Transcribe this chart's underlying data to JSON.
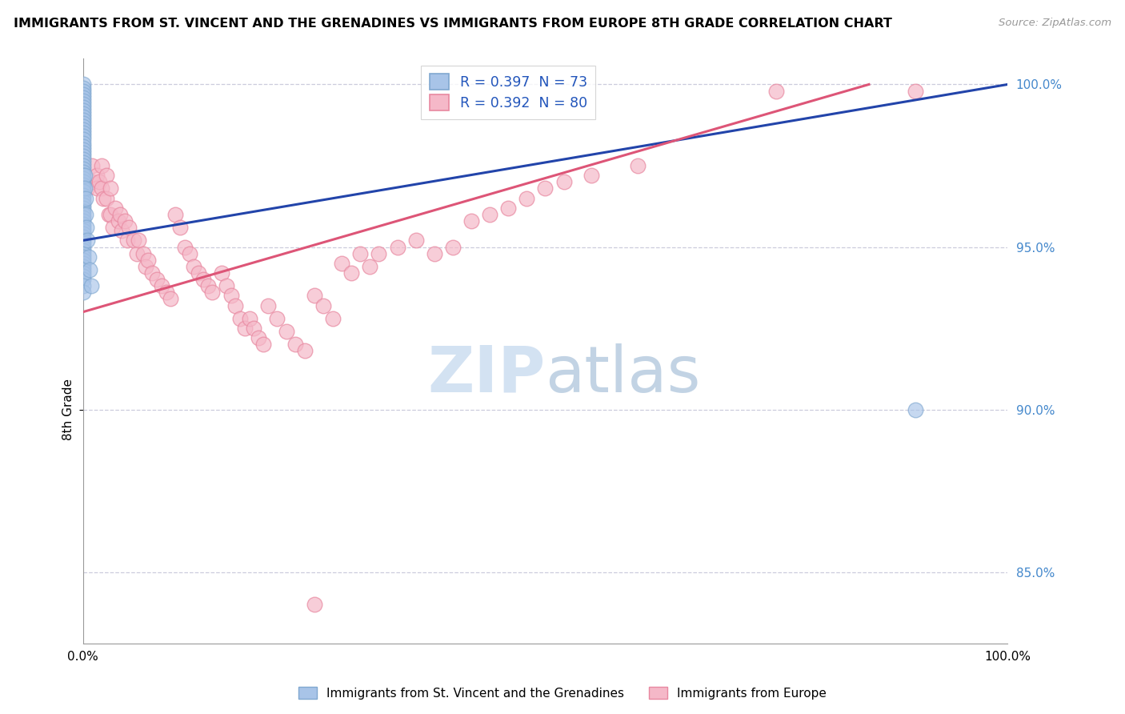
{
  "title": "IMMIGRANTS FROM ST. VINCENT AND THE GRENADINES VS IMMIGRANTS FROM EUROPE 8TH GRADE CORRELATION CHART",
  "source": "Source: ZipAtlas.com",
  "ylabel": "8th Grade",
  "legend_entries": [
    {
      "label": "R = 0.397  N = 73",
      "color": "#a8c4e0"
    },
    {
      "label": "R = 0.392  N = 80",
      "color": "#f0a0b0"
    }
  ],
  "bottom_legend": [
    {
      "label": "Immigrants from St. Vincent and the Grenadines",
      "color": "#a8c4e0"
    },
    {
      "label": "Immigrants from Europe",
      "color": "#f0a0b0"
    }
  ],
  "blue_scatter_x": [
    0.0,
    0.0,
    0.0,
    0.0,
    0.0,
    0.0,
    0.0,
    0.0,
    0.0,
    0.0,
    0.0,
    0.0,
    0.0,
    0.0,
    0.0,
    0.0,
    0.0,
    0.0,
    0.0,
    0.0,
    0.0,
    0.0,
    0.0,
    0.0,
    0.0,
    0.0,
    0.0,
    0.0,
    0.0,
    0.0,
    0.0,
    0.0,
    0.0,
    0.0,
    0.0,
    0.0,
    0.0,
    0.0,
    0.0,
    0.0,
    0.0,
    0.0,
    0.0,
    0.0,
    0.0,
    0.0,
    0.0,
    0.0,
    0.0,
    0.0,
    0.0,
    0.0,
    0.0,
    0.0,
    0.0,
    0.0,
    0.0,
    0.0,
    0.0,
    0.0,
    0.0,
    0.0,
    0.0,
    0.002,
    0.002,
    0.003,
    0.003,
    0.004,
    0.005,
    0.006,
    0.007,
    0.009,
    0.9
  ],
  "blue_scatter_y": [
    1.0,
    0.999,
    0.998,
    0.997,
    0.996,
    0.995,
    0.994,
    0.993,
    0.992,
    0.991,
    0.99,
    0.989,
    0.988,
    0.987,
    0.986,
    0.985,
    0.984,
    0.983,
    0.982,
    0.981,
    0.98,
    0.979,
    0.978,
    0.977,
    0.976,
    0.975,
    0.974,
    0.973,
    0.972,
    0.971,
    0.97,
    0.969,
    0.968,
    0.967,
    0.966,
    0.965,
    0.964,
    0.963,
    0.962,
    0.961,
    0.96,
    0.959,
    0.958,
    0.957,
    0.956,
    0.955,
    0.954,
    0.953,
    0.952,
    0.951,
    0.95,
    0.949,
    0.948,
    0.947,
    0.946,
    0.945,
    0.944,
    0.943,
    0.942,
    0.941,
    0.94,
    0.938,
    0.936,
    0.972,
    0.968,
    0.965,
    0.96,
    0.956,
    0.952,
    0.947,
    0.943,
    0.938,
    0.9
  ],
  "pink_scatter_x": [
    0.005,
    0.01,
    0.01,
    0.015,
    0.015,
    0.018,
    0.02,
    0.02,
    0.022,
    0.025,
    0.025,
    0.028,
    0.03,
    0.03,
    0.032,
    0.035,
    0.038,
    0.04,
    0.042,
    0.045,
    0.048,
    0.05,
    0.055,
    0.058,
    0.06,
    0.065,
    0.068,
    0.07,
    0.075,
    0.08,
    0.085,
    0.09,
    0.095,
    0.1,
    0.105,
    0.11,
    0.115,
    0.12,
    0.125,
    0.13,
    0.135,
    0.14,
    0.15,
    0.155,
    0.16,
    0.165,
    0.17,
    0.175,
    0.18,
    0.185,
    0.19,
    0.195,
    0.2,
    0.21,
    0.22,
    0.23,
    0.24,
    0.25,
    0.26,
    0.27,
    0.28,
    0.29,
    0.3,
    0.31,
    0.32,
    0.34,
    0.36,
    0.38,
    0.4,
    0.42,
    0.44,
    0.46,
    0.48,
    0.5,
    0.52,
    0.55,
    0.6,
    0.75,
    0.9,
    0.25
  ],
  "pink_scatter_y": [
    0.968,
    0.975,
    0.97,
    0.972,
    0.968,
    0.97,
    0.975,
    0.968,
    0.965,
    0.972,
    0.965,
    0.96,
    0.968,
    0.96,
    0.956,
    0.962,
    0.958,
    0.96,
    0.955,
    0.958,
    0.952,
    0.956,
    0.952,
    0.948,
    0.952,
    0.948,
    0.944,
    0.946,
    0.942,
    0.94,
    0.938,
    0.936,
    0.934,
    0.96,
    0.956,
    0.95,
    0.948,
    0.944,
    0.942,
    0.94,
    0.938,
    0.936,
    0.942,
    0.938,
    0.935,
    0.932,
    0.928,
    0.925,
    0.928,
    0.925,
    0.922,
    0.92,
    0.932,
    0.928,
    0.924,
    0.92,
    0.918,
    0.935,
    0.932,
    0.928,
    0.945,
    0.942,
    0.948,
    0.944,
    0.948,
    0.95,
    0.952,
    0.948,
    0.95,
    0.958,
    0.96,
    0.962,
    0.965,
    0.968,
    0.97,
    0.972,
    0.975,
    0.998,
    0.998,
    0.84
  ],
  "blue_line_x": [
    0.0,
    1.0
  ],
  "blue_line_y": [
    0.952,
    1.0
  ],
  "pink_line_x": [
    0.0,
    0.85
  ],
  "pink_line_y": [
    0.93,
    1.0
  ],
  "xlim": [
    0.0,
    1.0
  ],
  "ylim": [
    0.828,
    1.008
  ],
  "right_ytick_values": [
    0.85,
    0.9,
    0.95,
    1.0
  ],
  "right_ytick_labels": [
    "85.0%",
    "90.0%",
    "95.0%",
    "100.0%"
  ],
  "ylabel_ypos": 0.9,
  "grid_color": "#ccccdd",
  "blue_dot_color": "#a8c4e8",
  "blue_edge_color": "#80a8d0",
  "pink_dot_color": "#f5b8c8",
  "pink_edge_color": "#e888a0",
  "blue_line_color": "#2244aa",
  "pink_line_color": "#dd5577",
  "watermark_zip_color": "#ccddf0",
  "watermark_atlas_color": "#b8cce0"
}
